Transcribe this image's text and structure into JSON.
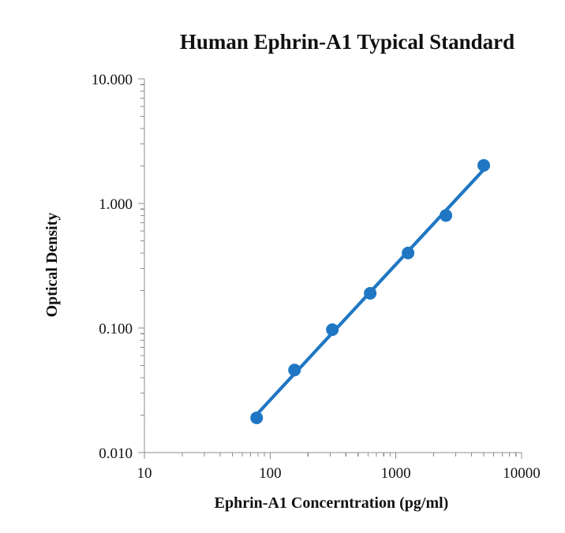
{
  "chart_data": {
    "type": "scatter",
    "title": "Human Ephrin-A1 Typical Standard",
    "xlabel": "Ephrin-A1 Concerntration (pg/ml)",
    "ylabel": "Optical Density",
    "x_scale": "log",
    "y_scale": "log",
    "xlim": [
      10,
      10000
    ],
    "ylim": [
      0.01,
      10
    ],
    "x_ticks": [
      "10",
      "100",
      "1000",
      "10000"
    ],
    "y_ticks": [
      "0.010",
      "0.100",
      "1.000",
      "10.000"
    ],
    "grid": false,
    "legend": "none",
    "trendline": "power fit",
    "series": [
      {
        "color": "#1f77c4",
        "points": [
          {
            "x": 78.13,
            "y": 0.019
          },
          {
            "x": 156.25,
            "y": 0.046
          },
          {
            "x": 312.5,
            "y": 0.097
          },
          {
            "x": 625,
            "y": 0.19
          },
          {
            "x": 1250,
            "y": 0.4
          },
          {
            "x": 2500,
            "y": 0.8
          },
          {
            "x": 5000,
            "y": 2.02
          }
        ]
      }
    ]
  }
}
